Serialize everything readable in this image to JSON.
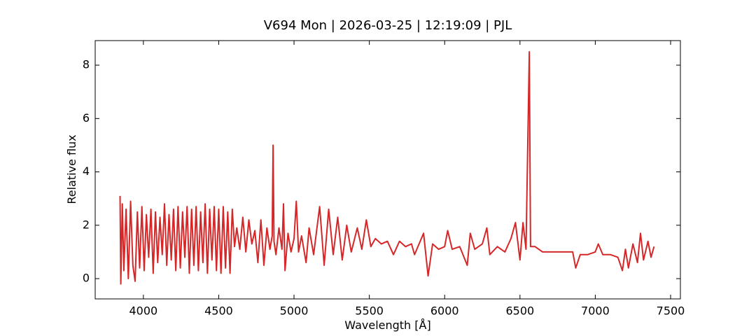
{
  "chart_data": {
    "type": "line",
    "title": "V694 Mon | 2026-03-25 | 12:19:09 | PJL",
    "x_label": "Wavelength [Å]",
    "y_label": "Relative flux",
    "color": "#d62728",
    "xlim": [
      3680,
      7565
    ],
    "ylim": [
      -0.76,
      8.92
    ],
    "xticks": [
      4000,
      4500,
      5000,
      5500,
      6000,
      6500,
      7000,
      7500
    ],
    "yticks": [
      0,
      2,
      4,
      6,
      8
    ],
    "x": [
      3845,
      3850,
      3860,
      3870,
      3885,
      3900,
      3915,
      3930,
      3945,
      3960,
      3975,
      3990,
      4005,
      4020,
      4035,
      4050,
      4065,
      4080,
      4095,
      4110,
      4125,
      4140,
      4155,
      4170,
      4185,
      4200,
      4215,
      4230,
      4245,
      4260,
      4275,
      4290,
      4305,
      4320,
      4335,
      4350,
      4365,
      4380,
      4395,
      4410,
      4425,
      4440,
      4455,
      4470,
      4485,
      4500,
      4515,
      4530,
      4545,
      4560,
      4575,
      4590,
      4605,
      4620,
      4640,
      4660,
      4680,
      4700,
      4720,
      4740,
      4760,
      4780,
      4800,
      4820,
      4840,
      4855,
      4861,
      4867,
      4880,
      4900,
      4920,
      4930,
      4940,
      4960,
      4980,
      5000,
      5015,
      5030,
      5050,
      5080,
      5100,
      5130,
      5170,
      5200,
      5230,
      5260,
      5290,
      5320,
      5350,
      5380,
      5420,
      5450,
      5480,
      5510,
      5540,
      5580,
      5620,
      5660,
      5700,
      5740,
      5780,
      5800,
      5830,
      5860,
      5890,
      5920,
      5960,
      6000,
      6020,
      6050,
      6100,
      6150,
      6170,
      6200,
      6250,
      6280,
      6300,
      6350,
      6400,
      6440,
      6470,
      6500,
      6520,
      6540,
      6562,
      6570,
      6600,
      6650,
      6700,
      6750,
      6800,
      6850,
      6870,
      6900,
      6950,
      7000,
      7020,
      7050,
      7100,
      7150,
      7180,
      7200,
      7220,
      7250,
      7280,
      7300,
      7320,
      7350,
      7370,
      7390
    ],
    "values": [
      3.1,
      -0.2,
      2.8,
      0.3,
      2.6,
      0.0,
      2.9,
      0.5,
      -0.1,
      2.5,
      0.4,
      2.7,
      0.3,
      2.4,
      0.8,
      2.6,
      0.2,
      2.5,
      0.6,
      2.3,
      0.9,
      2.8,
      0.5,
      2.4,
      0.7,
      2.6,
      0.3,
      2.7,
      0.4,
      2.5,
      0.8,
      2.7,
      0.2,
      2.6,
      0.5,
      2.7,
      0.3,
      2.5,
      0.6,
      2.8,
      0.2,
      2.6,
      0.7,
      2.7,
      0.3,
      2.6,
      0.2,
      2.7,
      0.4,
      2.5,
      0.2,
      2.6,
      1.2,
      1.9,
      1.1,
      2.3,
      1.0,
      2.2,
      1.3,
      1.8,
      0.6,
      2.2,
      0.5,
      1.9,
      1.1,
      1.6,
      5.0,
      1.4,
      0.9,
      1.9,
      1.1,
      2.8,
      0.3,
      1.7,
      1.0,
      1.5,
      2.9,
      1.0,
      1.6,
      0.6,
      1.9,
      0.9,
      2.7,
      0.5,
      2.6,
      0.9,
      2.3,
      0.7,
      2.0,
      1.0,
      1.9,
      1.1,
      2.2,
      1.2,
      1.5,
      1.3,
      1.4,
      0.9,
      1.4,
      1.2,
      1.3,
      0.9,
      1.3,
      1.7,
      0.1,
      1.3,
      1.1,
      1.2,
      1.8,
      1.1,
      1.2,
      0.5,
      1.7,
      1.1,
      1.3,
      1.9,
      0.9,
      1.2,
      1.0,
      1.5,
      2.1,
      0.7,
      2.1,
      1.1,
      8.5,
      1.2,
      1.2,
      1.0,
      1.0,
      1.0,
      1.0,
      1.0,
      0.4,
      0.9,
      0.9,
      1.0,
      1.3,
      0.9,
      0.9,
      0.8,
      0.3,
      1.1,
      0.4,
      1.3,
      0.6,
      1.7,
      0.7,
      1.4,
      0.8,
      1.2
    ]
  }
}
